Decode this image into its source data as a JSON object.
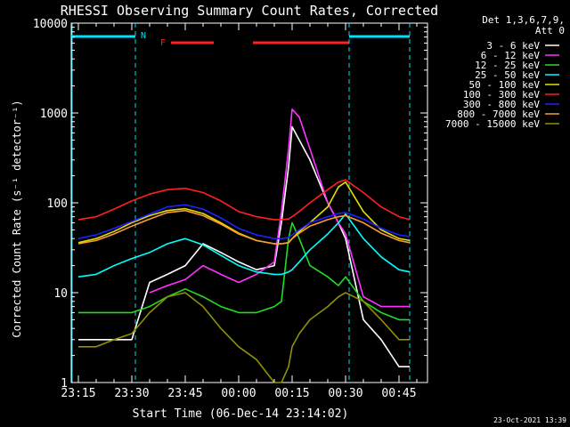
{
  "chart_data": {
    "type": "line",
    "title": "RHESSI Observing Summary Count Rates, Corrected",
    "xlabel": "Start Time (06-Dec-14 23:14:02)",
    "ylabel": "Corrected Count Rate (s⁻¹ detector⁻¹)",
    "yscale": "log",
    "ylim": [
      1,
      10000
    ],
    "xlim": [
      "23:13",
      "00:53"
    ],
    "x_ticks": [
      "23:15",
      "23:30",
      "23:45",
      "00:00",
      "00:15",
      "00:30",
      "00:45"
    ],
    "y_ticks": [
      "1",
      "10",
      "100",
      "1000",
      "10000"
    ],
    "legend_header": [
      "Det 1,3,6,7,9,",
      "Att 0"
    ],
    "legend_position": "right",
    "footer_date": "23-Oct-2021 13:39",
    "annotations": {
      "night_label": "N",
      "flare_label": "F",
      "night_color": "#00e0ff",
      "flare_color": "#ff2020",
      "night_intervals": [
        [
          "23:13",
          "23:31"
        ],
        [
          "00:31",
          "00:48"
        ]
      ],
      "flare_intervals": [
        [
          "23:41",
          "23:53"
        ],
        [
          "00:04",
          "00:31"
        ]
      ],
      "night_boundaries": [
        "23:31",
        "00:31"
      ]
    },
    "x": [
      "23:15",
      "23:20",
      "23:25",
      "23:30",
      "23:35",
      "23:40",
      "23:45",
      "23:50",
      "23:55",
      "00:00",
      "00:05",
      "00:10",
      "00:12",
      "00:14",
      "00:15",
      "00:17",
      "00:20",
      "00:25",
      "00:28",
      "00:30",
      "00:35",
      "00:40",
      "00:45",
      "00:48"
    ],
    "series": [
      {
        "name": "3 - 6 keV",
        "color": "#ffffff",
        "values": [
          3,
          3,
          3,
          3,
          13,
          16,
          20,
          35,
          28,
          22,
          18,
          20,
          60,
          250,
          700,
          500,
          300,
          100,
          60,
          40,
          5,
          3,
          1.5,
          1.5
        ]
      },
      {
        "name": "6 - 12 keV",
        "color": "#ff33ff",
        "values": [
          null,
          null,
          null,
          null,
          10,
          12,
          14,
          20,
          16,
          13,
          16,
          22,
          80,
          400,
          1100,
          900,
          400,
          100,
          60,
          45,
          9,
          7,
          7,
          7
        ]
      },
      {
        "name": "12 - 25 keV",
        "color": "#22dd22",
        "values": [
          6,
          6,
          6,
          6,
          7,
          9,
          11,
          9,
          7,
          6,
          6,
          7,
          8,
          40,
          60,
          40,
          20,
          15,
          12,
          15,
          8,
          6,
          5,
          5
        ]
      },
      {
        "name": "25 - 50 keV",
        "color": "#00ffff",
        "values": [
          15,
          16,
          20,
          24,
          28,
          35,
          40,
          34,
          26,
          20,
          17,
          16,
          16,
          17,
          18,
          22,
          30,
          45,
          60,
          75,
          40,
          25,
          18,
          17
        ]
      },
      {
        "name": "50 - 100 keV",
        "color": "#e0e000",
        "values": [
          36,
          40,
          48,
          60,
          72,
          82,
          86,
          76,
          60,
          46,
          38,
          35,
          35,
          36,
          40,
          48,
          60,
          90,
          150,
          170,
          80,
          50,
          40,
          38
        ]
      },
      {
        "name": "100 - 300 keV",
        "color": "#ff2020",
        "values": [
          65,
          70,
          85,
          105,
          125,
          140,
          145,
          130,
          105,
          80,
          70,
          65,
          65,
          66,
          70,
          80,
          100,
          140,
          170,
          180,
          130,
          90,
          70,
          65
        ]
      },
      {
        "name": "300 - 800 keV",
        "color": "#2020ff",
        "values": [
          40,
          44,
          52,
          62,
          75,
          90,
          95,
          85,
          68,
          52,
          44,
          40,
          40,
          41,
          44,
          50,
          60,
          70,
          76,
          78,
          66,
          52,
          44,
          42
        ]
      },
      {
        "name": "800 - 7000 keV",
        "color": "#ff9933",
        "values": [
          35,
          38,
          45,
          55,
          66,
          78,
          82,
          72,
          58,
          45,
          38,
          35,
          35,
          36,
          40,
          46,
          55,
          65,
          70,
          72,
          60,
          46,
          38,
          36
        ]
      },
      {
        "name": "7000 - 15000 keV",
        "color": "#909000",
        "values": [
          2.5,
          2.5,
          3,
          3.5,
          6,
          9,
          10,
          7,
          4,
          2.5,
          1.8,
          1,
          1,
          1.5,
          2.5,
          3.5,
          5,
          7,
          9,
          10,
          8,
          5,
          3,
          3
        ]
      }
    ]
  }
}
